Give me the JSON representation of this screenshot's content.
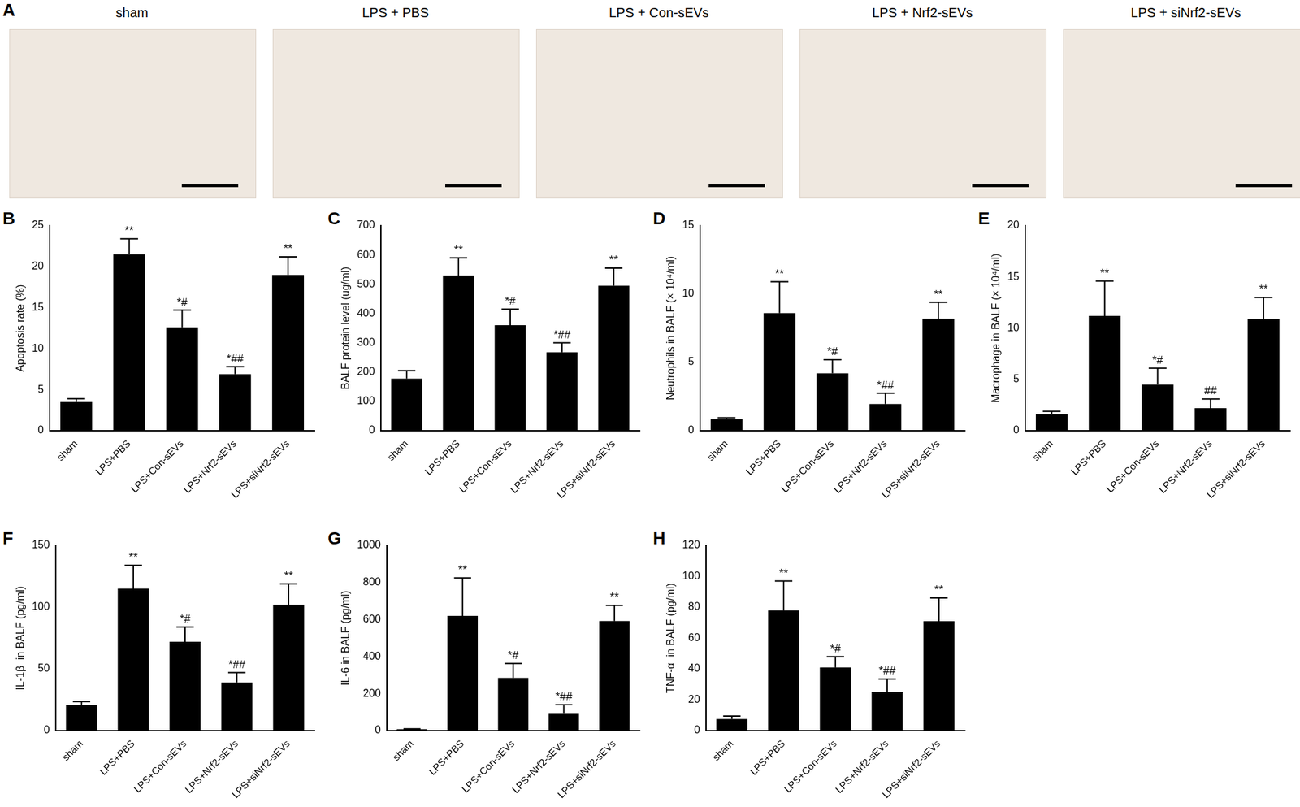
{
  "panel_a": {
    "panel": "A",
    "images": [
      "sham",
      "LPS + PBS",
      "LPS + Con-sEVs",
      "LPS + Nrf2-sEVs",
      "LPS + siNrf2-sEVs"
    ]
  },
  "chart_data": [
    {
      "panel": "B",
      "type": "bar",
      "y_label": "Apoptosis rate (%)",
      "categories": [
        "sham",
        "LPS+PBS",
        "LPS+Con-sEVs",
        "LPS+Nrf2-sEVs",
        "LPS+siNrf2-sEVs"
      ],
      "values": [
        3.5,
        21.5,
        12.6,
        6.9,
        19.0
      ],
      "errors": [
        0.4,
        1.9,
        2.1,
        0.9,
        2.2
      ],
      "annotations": [
        null,
        "**",
        "*#",
        "*##",
        "**"
      ],
      "color": "#000000",
      "ylim": [
        0,
        25
      ],
      "yticks": [
        0,
        5,
        10,
        15,
        20,
        25
      ],
      "grid": false
    },
    {
      "panel": "C",
      "type": "bar",
      "y_label": "BALF protein level (ug/ml)",
      "categories": [
        "sham",
        "LPS+PBS",
        "LPS+Con-sEVs",
        "LPS+Nrf2-sEVs",
        "LPS+siNrf2-sEVs"
      ],
      "values": [
        178,
        530,
        360,
        268,
        495
      ],
      "errors": [
        27,
        60,
        55,
        32,
        60
      ],
      "annotations": [
        null,
        "**",
        "*#",
        "*##",
        "**"
      ],
      "color": "#000000",
      "ylim": [
        0,
        700
      ],
      "yticks": [
        0,
        100,
        200,
        300,
        400,
        500,
        600,
        700
      ],
      "grid": false
    },
    {
      "panel": "D",
      "type": "bar",
      "y_label": "Neutrophils in BALF (× 10⁴/ml)",
      "categories": [
        "sham",
        "LPS+PBS",
        "LPS+Con-sEVs",
        "LPS+Nrf2-sEVs",
        "LPS+siNrf2-sEVs"
      ],
      "values": [
        0.85,
        8.6,
        4.2,
        1.95,
        8.2
      ],
      "errors": [
        0.1,
        2.3,
        1.0,
        0.8,
        1.2
      ],
      "annotations": [
        null,
        "**",
        "*#",
        "*##",
        "**"
      ],
      "color": "#000000",
      "ylim": [
        0,
        15
      ],
      "yticks": [
        0,
        5,
        10,
        15
      ],
      "grid": false
    },
    {
      "panel": "E",
      "type": "bar",
      "y_label": "Macrophage in BALF (× 10⁴/ml)",
      "categories": [
        "sham",
        "LPS+PBS",
        "LPS+Con-sEVs",
        "LPS+Nrf2-sEVs",
        "LPS+siNrf2-sEVs"
      ],
      "values": [
        1.6,
        11.2,
        4.5,
        2.2,
        10.9
      ],
      "errors": [
        0.3,
        3.4,
        1.6,
        0.9,
        2.1
      ],
      "annotations": [
        null,
        "**",
        "*#",
        "##",
        "**"
      ],
      "color": "#000000",
      "ylim": [
        0,
        20
      ],
      "yticks": [
        0,
        5,
        10,
        15,
        20
      ],
      "grid": false
    },
    {
      "panel": "F",
      "type": "bar",
      "y_label": "IL-1β  in BALF (pg/ml)",
      "categories": [
        "sham",
        "LPS+PBS",
        "LPS+Con-sEVs",
        "LPS+Nrf2-sEVs",
        "LPS+siNrf2-sEVs"
      ],
      "values": [
        21,
        115,
        72,
        39,
        102
      ],
      "errors": [
        2.5,
        19,
        12,
        8,
        17
      ],
      "annotations": [
        null,
        "**",
        "*#",
        "*##",
        "**"
      ],
      "color": "#000000",
      "ylim": [
        0,
        150
      ],
      "yticks": [
        0,
        50,
        100,
        150
      ],
      "grid": false
    },
    {
      "panel": "G",
      "type": "bar",
      "y_label": "IL-6 in BALF (pg/ml)",
      "categories": [
        "sham",
        "LPS+PBS",
        "LPS+Con-sEVs",
        "LPS+Nrf2-sEVs",
        "LPS+siNrf2-sEVs"
      ],
      "values": [
        8,
        620,
        285,
        95,
        592
      ],
      "errors": [
        2,
        205,
        78,
        45,
        85
      ],
      "annotations": [
        null,
        "**",
        "*#",
        "*##",
        "**"
      ],
      "color": "#000000",
      "ylim": [
        0,
        1000
      ],
      "yticks": [
        0,
        200,
        400,
        600,
        800,
        1000
      ],
      "grid": false
    },
    {
      "panel": "H",
      "type": "bar",
      "y_label": "TNF-α  in BALF (pg/ml)",
      "categories": [
        "sham",
        "LPS+PBS",
        "LPS+Con-sEVs",
        "LPS+Nrf2-sEVs",
        "LPS+siNrf2-sEVs"
      ],
      "values": [
        7.5,
        78,
        41,
        25,
        71
      ],
      "errors": [
        2,
        19,
        7,
        8.5,
        15
      ],
      "annotations": [
        null,
        "**",
        "*#",
        "*##",
        "**"
      ],
      "color": "#000000",
      "ylim": [
        0,
        120
      ],
      "yticks": [
        0,
        20,
        40,
        60,
        80,
        100,
        120
      ],
      "grid": false
    }
  ]
}
